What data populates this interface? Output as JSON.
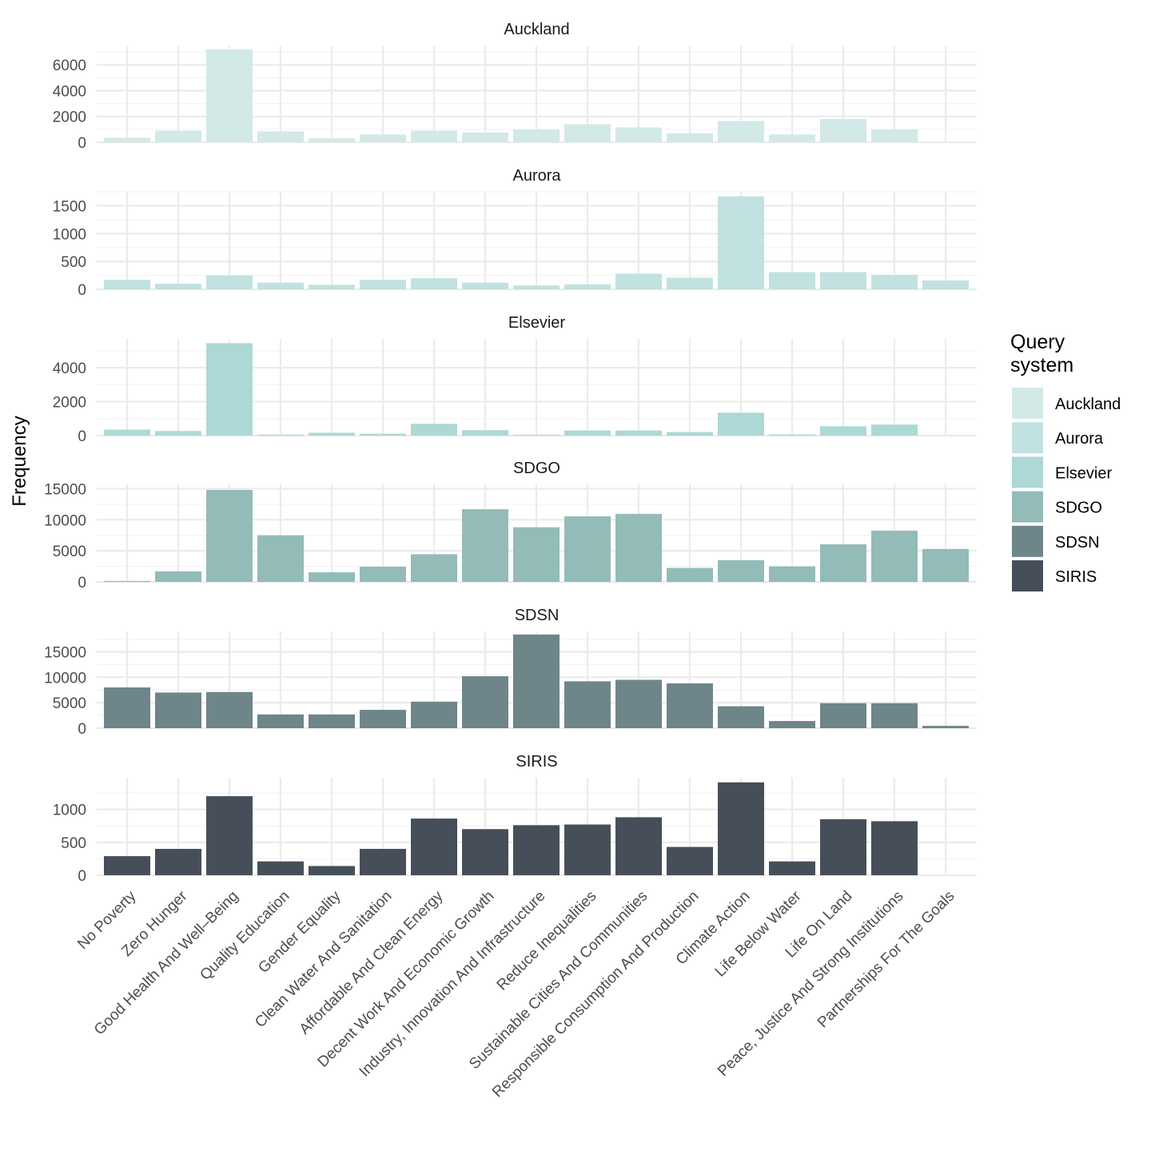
{
  "chart_data": {
    "type": "bar",
    "ylabel": "Frequency",
    "legend": {
      "title_lines": [
        "Query",
        "system"
      ],
      "position": "right"
    },
    "categories": [
      "No Poverty",
      "Zero Hunger",
      "Good Health And Well–Being",
      "Quality Education",
      "Gender Equality",
      "Clean Water And Sanitation",
      "Affordable And Clean Energy",
      "Decent Work And Economic Growth",
      "Industry, Innovation And Infrastructure",
      "Reduce Inequalities",
      "Sustainable Cities And Communities",
      "Responsible Consumption And Production",
      "Climate Action",
      "Life Below Water",
      "Life On Land",
      "Peace, Justice And Strong Institutions",
      "Partnerships For The Goals"
    ],
    "facets": [
      {
        "name": "Auckland",
        "color": "#d2e9e7",
        "ylim": [
          0,
          7500
        ],
        "ticks": [
          0,
          2000,
          4000,
          6000
        ],
        "values": [
          350,
          900,
          7200,
          850,
          300,
          600,
          900,
          750,
          1000,
          1400,
          1150,
          700,
          1650,
          600,
          1800,
          1000,
          0
        ]
      },
      {
        "name": "Aurora",
        "color": "#c1e2e0",
        "ylim": [
          0,
          1750
        ],
        "ticks": [
          0,
          500,
          1000,
          1500
        ],
        "values": [
          170,
          100,
          250,
          120,
          80,
          170,
          200,
          120,
          70,
          90,
          280,
          210,
          1670,
          310,
          310,
          260,
          160
        ]
      },
      {
        "name": "Elsevier",
        "color": "#acd9d5",
        "ylim": [
          0,
          5700
        ],
        "ticks": [
          0,
          2000,
          4000
        ],
        "values": [
          350,
          270,
          5450,
          60,
          170,
          110,
          700,
          320,
          50,
          300,
          300,
          210,
          1350,
          70,
          550,
          650,
          0
        ]
      },
      {
        "name": "SDGO",
        "color": "#93bbb8",
        "ylim": [
          0,
          15700
        ],
        "ticks": [
          0,
          5000,
          10000,
          15000
        ],
        "values": [
          150,
          1700,
          14800,
          7500,
          1550,
          2450,
          4450,
          11700,
          8800,
          10550,
          10950,
          2250,
          3500,
          2500,
          6050,
          8250,
          5300
        ]
      },
      {
        "name": "SDSN",
        "color": "#6e8589",
        "ylim": [
          0,
          19000
        ],
        "ticks": [
          0,
          5000,
          10000,
          15000
        ],
        "values": [
          8000,
          7000,
          7100,
          2700,
          2700,
          3600,
          5200,
          10200,
          18400,
          9200,
          9500,
          8800,
          4300,
          1400,
          4900,
          4900,
          450
        ]
      },
      {
        "name": "SIRIS",
        "color": "#464f59",
        "ylim": [
          0,
          1480
        ],
        "ticks": [
          0,
          500,
          1000
        ],
        "values": [
          290,
          400,
          1200,
          210,
          140,
          400,
          860,
          700,
          760,
          770,
          880,
          430,
          1410,
          210,
          850,
          820,
          0
        ]
      }
    ]
  }
}
